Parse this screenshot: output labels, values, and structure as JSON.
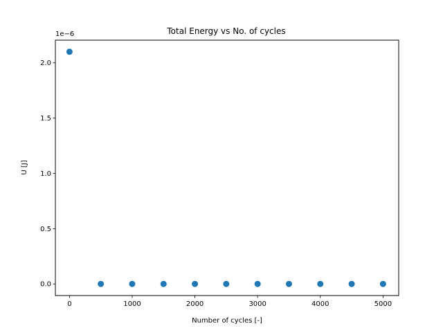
{
  "chart_data": {
    "type": "scatter",
    "title": "Total Energy vs No. of cycles",
    "xlabel": "Number of cycles [-]",
    "ylabel": "U [J]",
    "y_offset_label": "1e−6",
    "y_scale_multiplier": 1e-06,
    "xlim": [
      -225,
      5250
    ],
    "ylim": [
      -0.105,
      2.205
    ],
    "x_ticks": [
      0,
      1000,
      2000,
      3000,
      4000,
      5000
    ],
    "x_tick_labels": [
      "0",
      "1000",
      "2000",
      "3000",
      "4000",
      "5000"
    ],
    "y_ticks": [
      0.0,
      0.5,
      1.0,
      1.5,
      2.0
    ],
    "y_tick_labels": [
      "0.0",
      "0.5",
      "1.0",
      "1.5",
      "2.0"
    ],
    "grid": false,
    "marker_color": "#1f77b4",
    "x": [
      0,
      500,
      1000,
      1500,
      2000,
      2500,
      3000,
      3500,
      4000,
      4500,
      5000
    ],
    "y": [
      2.1,
      0.0,
      0.0,
      0.0,
      0.0,
      0.0,
      0.0,
      0.0,
      0.0,
      0.0,
      0.0
    ]
  }
}
